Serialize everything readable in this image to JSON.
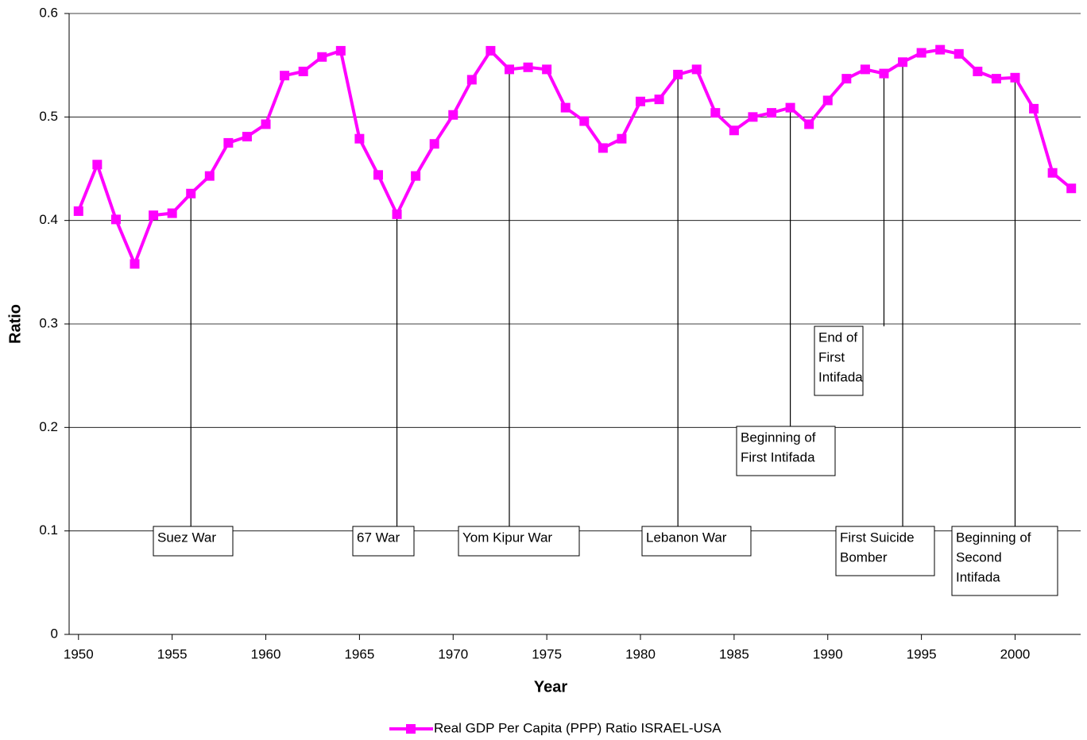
{
  "chart_data": {
    "type": "line",
    "x_label": "Year",
    "y_label": "Ratio",
    "x": [
      1950,
      1951,
      1952,
      1953,
      1954,
      1955,
      1956,
      1957,
      1958,
      1959,
      1960,
      1961,
      1962,
      1963,
      1964,
      1965,
      1966,
      1967,
      1968,
      1969,
      1970,
      1971,
      1972,
      1973,
      1974,
      1975,
      1976,
      1977,
      1978,
      1979,
      1980,
      1981,
      1982,
      1983,
      1984,
      1985,
      1986,
      1987,
      1988,
      1989,
      1990,
      1991,
      1992,
      1993,
      1994,
      1995,
      1996,
      1997,
      1998,
      1999,
      2000,
      2001,
      2002,
      2003
    ],
    "series": [
      {
        "name": "Real GDP Per Capita (PPP) Ratio ISRAEL-USA",
        "color": "#ff00ff",
        "values": [
          0.409,
          0.454,
          0.401,
          0.358,
          0.405,
          0.407,
          0.426,
          0.443,
          0.475,
          0.481,
          0.493,
          0.54,
          0.544,
          0.558,
          0.564,
          0.479,
          0.444,
          0.406,
          0.443,
          0.474,
          0.502,
          0.536,
          0.564,
          0.546,
          0.548,
          0.546,
          0.509,
          0.496,
          0.47,
          0.479,
          0.515,
          0.517,
          0.541,
          0.546,
          0.504,
          0.487,
          0.5,
          0.504,
          0.509,
          0.493,
          0.516,
          0.537,
          0.546,
          0.542,
          0.553,
          0.562,
          0.565,
          0.561,
          0.544,
          0.537,
          0.538,
          0.508,
          0.446,
          0.431
        ]
      }
    ],
    "xlim": [
      1949.5,
      2003.5
    ],
    "xticks": [
      1950,
      1955,
      1960,
      1965,
      1970,
      1975,
      1980,
      1985,
      1990,
      1995,
      2000
    ],
    "ylim": [
      0,
      0.6
    ],
    "yticks": [
      0,
      0.1,
      0.2,
      0.3,
      0.4,
      0.5,
      0.6
    ],
    "grid": true,
    "legend": "bottom",
    "annotations": [
      {
        "x": 1956,
        "lines": [
          "Suez War"
        ]
      },
      {
        "x": 1967,
        "lines": [
          "67 War"
        ]
      },
      {
        "x": 1973,
        "lines": [
          "Yom Kipur War"
        ]
      },
      {
        "x": 1982,
        "lines": [
          "Lebanon War"
        ]
      },
      {
        "x": 1988,
        "lines": [
          "Beginning of",
          "First Intifada"
        ]
      },
      {
        "x": 1993,
        "lines": [
          "End of",
          "First",
          "Intifada"
        ]
      },
      {
        "x": 1994,
        "lines": [
          "First Suicide",
          "Bomber"
        ]
      },
      {
        "x": 2000,
        "lines": [
          "Beginning of",
          "Second",
          "Intifada"
        ]
      }
    ]
  }
}
